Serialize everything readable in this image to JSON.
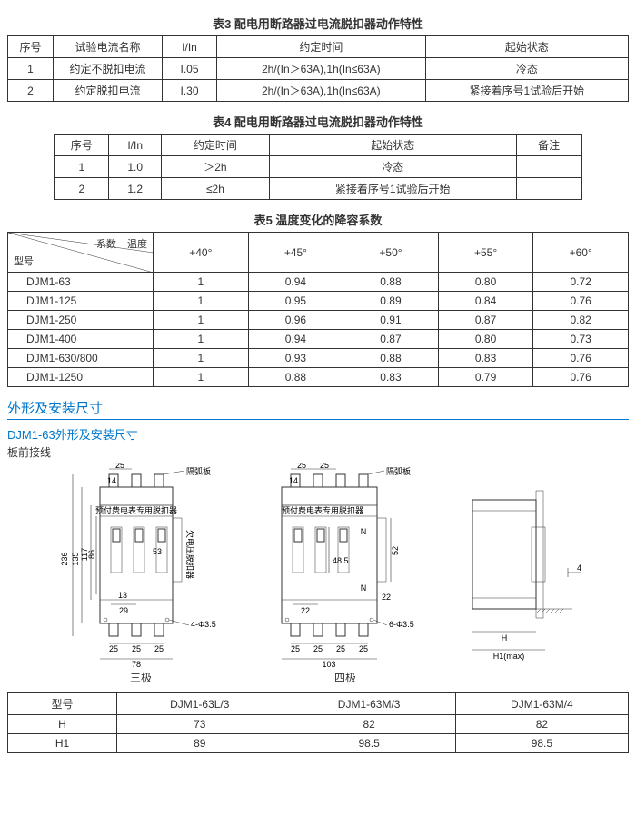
{
  "table3": {
    "title": "表3 配电用断路器过电流脱扣器动作特性",
    "headers": [
      "序号",
      "试验电流名称",
      "I/In",
      "约定时间",
      "起始状态"
    ],
    "rows": [
      [
        "1",
        "约定不脱扣电流",
        "I.05",
        "2h/(In＞63A),1h(In≤63A)",
        "冷态"
      ],
      [
        "2",
        "约定脱扣电流",
        "I.30",
        "2h/(In＞63A),1h(In≤63A)",
        "紧接着序号1试验后开始"
      ]
    ]
  },
  "table4": {
    "title": "表4 配电用断路器过电流脱扣器动作特性",
    "headers": [
      "序号",
      "I/In",
      "约定时间",
      "起始状态",
      "备注"
    ],
    "rows": [
      [
        "1",
        "1.0",
        "＞2h",
        "冷态",
        ""
      ],
      [
        "2",
        "1.2",
        "≤2h",
        "紧接着序号1试验后开始",
        ""
      ]
    ]
  },
  "table5": {
    "title": "表5 温度变化的降容系数",
    "diag": {
      "l1": "系数",
      "l2": "温度",
      "l3": "型号"
    },
    "cols": [
      "+40°",
      "+45°",
      "+50°",
      "+55°",
      "+60°"
    ],
    "rows": [
      {
        "m": "DJM1-63",
        "v": [
          "1",
          "0.94",
          "0.88",
          "0.80",
          "0.72"
        ]
      },
      {
        "m": "DJM1-125",
        "v": [
          "1",
          "0.95",
          "0.89",
          "0.84",
          "0.76"
        ]
      },
      {
        "m": "DJM1-250",
        "v": [
          "1",
          "0.96",
          "0.91",
          "0.87",
          "0.82"
        ]
      },
      {
        "m": "DJM1-400",
        "v": [
          "1",
          "0.94",
          "0.87",
          "0.80",
          "0.73"
        ]
      },
      {
        "m": "DJM1-630/800",
        "v": [
          "1",
          "0.93",
          "0.88",
          "0.83",
          "0.76"
        ]
      },
      {
        "m": "DJM1-1250",
        "v": [
          "1",
          "0.88",
          "0.83",
          "0.79",
          "0.76"
        ]
      }
    ]
  },
  "section": {
    "h1": "外形及安装尺寸",
    "h2": "DJM1-63外形及安装尺寸",
    "h3": "板前接线",
    "cap1": "三极",
    "cap2": "四极",
    "dims": {
      "d25": "25",
      "d14": "14",
      "d236": "236",
      "d135": "135",
      "d86": "86",
      "d117": "117",
      "d53": "53",
      "d13": "13",
      "d29": "29",
      "d78": "78",
      "hole3": "4-Φ3.5",
      "hole4": "6-Φ3.5",
      "d103": "103",
      "d22": "22",
      "d485": "48.5",
      "d52": "52",
      "N": "N",
      "d4": "4",
      "H": "H",
      "H1": "H1(max)",
      "label1": "隔弧板",
      "label2": "预付费电表专用脱扣器",
      "label3": "欠电压脱扣器"
    }
  },
  "table6": {
    "headers": [
      "型号",
      "DJM1-63L/3",
      "DJM1-63M/3",
      "DJM1-63M/4"
    ],
    "rows": [
      [
        "H",
        "73",
        "82",
        "82"
      ],
      [
        "H1",
        "89",
        "98.5",
        "98.5"
      ]
    ]
  }
}
